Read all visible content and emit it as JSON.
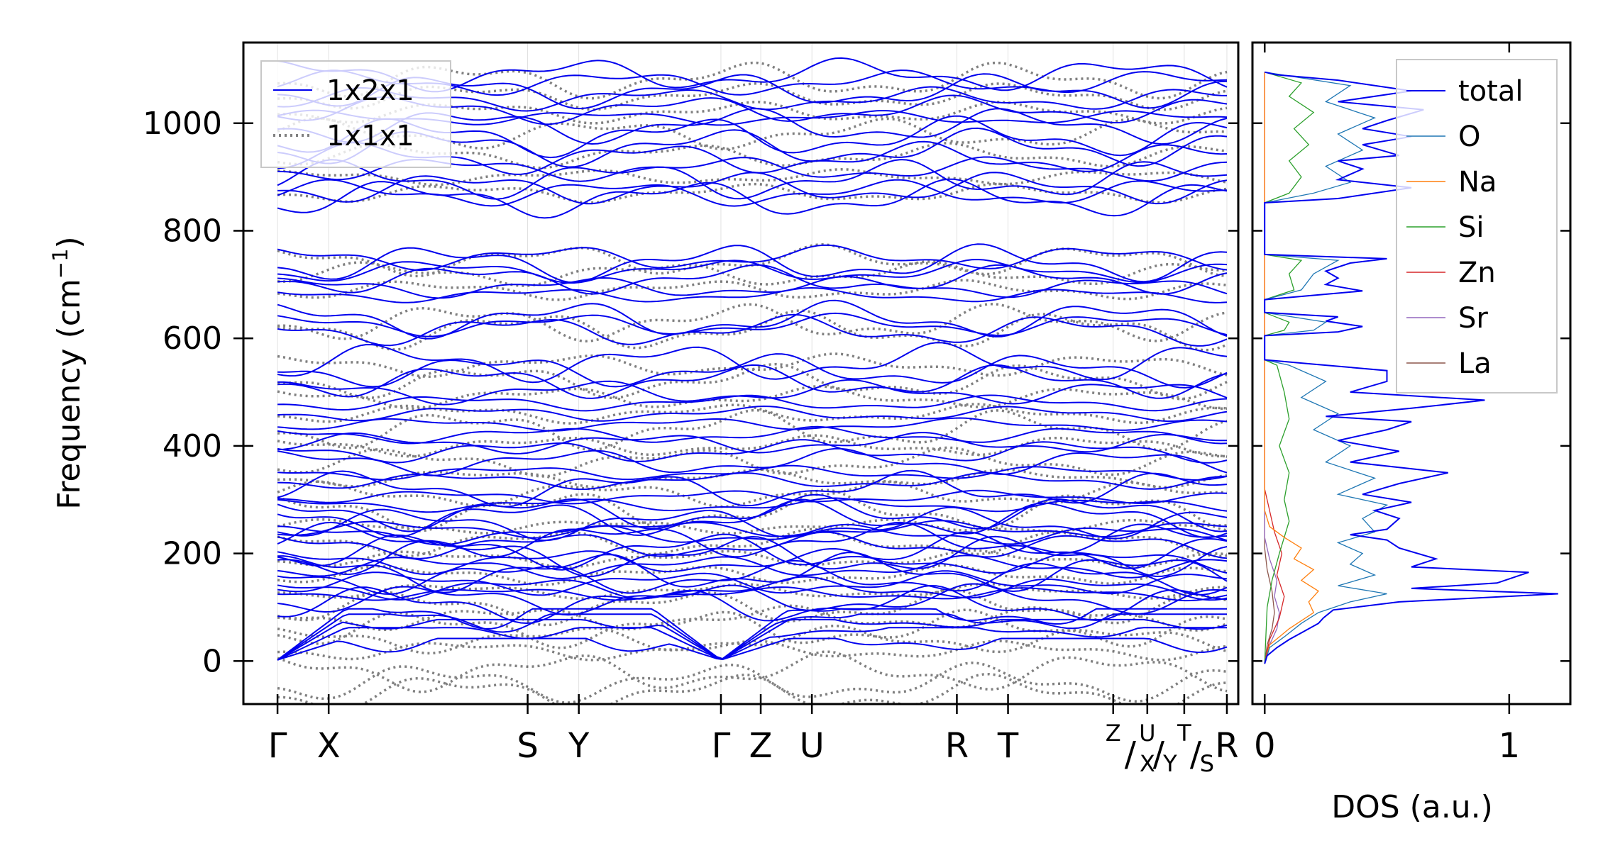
{
  "chart_data": [
    {
      "type": "line",
      "name": "phonon-band-structure",
      "ylabel": "Frequency (cm",
      "ylabel_sup": "−1",
      "ylabel_close": ")",
      "ylim": [
        -80,
        1150
      ],
      "yticks": [
        0,
        200,
        400,
        600,
        800,
        1000
      ],
      "xlim": [
        0,
        17.5
      ],
      "kpoints": [
        {
          "label": "Γ",
          "pos": 0.6
        },
        {
          "label": "X",
          "pos": 1.5
        },
        {
          "label": "S",
          "pos": 5.0
        },
        {
          "label": "Y",
          "pos": 5.9
        },
        {
          "label": "Γ",
          "pos": 8.4
        },
        {
          "label": "Z",
          "pos": 9.1
        },
        {
          "label": "U",
          "pos": 10.0
        },
        {
          "label": "R",
          "pos": 12.55
        },
        {
          "label": "T",
          "pos": 13.45
        },
        {
          "label": "Z",
          "pos": 15.3,
          "sup": true
        },
        {
          "label": "U",
          "pos": 15.9,
          "sup": true
        },
        {
          "label": "X",
          "pos": 15.9,
          "sub": true
        },
        {
          "label": "T",
          "pos": 16.55,
          "sup": true
        },
        {
          "label": "Y",
          "pos": 16.3,
          "sub": true
        },
        {
          "label": "S",
          "pos": 16.95,
          "sub": true
        },
        {
          "label": "R",
          "pos": 17.3
        }
      ],
      "path_separators": [
        "/",
        "/",
        "/"
      ],
      "legend": {
        "position": "top-left",
        "entries": [
          "1x2x1",
          "1x1x1"
        ]
      },
      "series": [
        {
          "name": "1x2x1",
          "color": "#0000ee",
          "style": "solid",
          "band_centers": [
            40,
            60,
            75,
            85,
            95,
            105,
            115,
            125,
            135,
            145,
            155,
            165,
            175,
            185,
            195,
            205,
            215,
            225,
            235,
            245,
            255,
            265,
            275,
            290,
            305,
            320,
            335,
            350,
            370,
            390,
            405,
            420,
            440,
            460,
            480,
            500,
            520,
            540,
            555,
            615,
            625,
            635,
            680,
            695,
            710,
            725,
            740,
            750,
            860,
            870,
            880,
            895,
            915,
            935,
            955,
            975,
            995,
            1010,
            1025,
            1045,
            1060,
            1075,
            1090
          ]
        },
        {
          "name": "1x1x1",
          "color": "#808080",
          "style": "dotted",
          "band_centers": [
            -60,
            -40,
            -20,
            20,
            40,
            60,
            80,
            100,
            130,
            160,
            190,
            220,
            250,
            280,
            310,
            340,
            370,
            400,
            430,
            460,
            490,
            520,
            550,
            615,
            630,
            690,
            720,
            745,
            870,
            900,
            940,
            980,
            1020,
            1050,
            1080
          ]
        }
      ]
    },
    {
      "type": "line",
      "name": "density-of-states",
      "xlabel": "DOS (a.u.)",
      "xlim": [
        -0.05,
        1.25
      ],
      "xticks": [
        0,
        1
      ],
      "ylim": [
        -80,
        1150
      ],
      "legend": {
        "position": "top-right",
        "entries": [
          "total",
          "O",
          "Na",
          "Si",
          "Zn",
          "Sr",
          "La"
        ]
      },
      "series": [
        {
          "name": "total",
          "color": "#0000ee",
          "points": [
            [
              0,
              -5
            ],
            [
              0.01,
              10
            ],
            [
              0.05,
              25
            ],
            [
              0.1,
              40
            ],
            [
              0.16,
              55
            ],
            [
              0.22,
              70
            ],
            [
              0.24,
              80
            ],
            [
              0.28,
              95
            ],
            [
              0.55,
              110
            ],
            [
              1.2,
              125
            ],
            [
              0.6,
              135
            ],
            [
              0.95,
              145
            ],
            [
              1.08,
              165
            ],
            [
              0.6,
              175
            ],
            [
              0.7,
              190
            ],
            [
              0.55,
              210
            ],
            [
              0.5,
              225
            ],
            [
              0.35,
              235
            ],
            [
              0.5,
              245
            ],
            [
              0.55,
              265
            ],
            [
              0.45,
              280
            ],
            [
              0.6,
              295
            ],
            [
              0.4,
              310
            ],
            [
              0.55,
              330
            ],
            [
              0.75,
              350
            ],
            [
              0.35,
              370
            ],
            [
              0.55,
              390
            ],
            [
              0.3,
              410
            ],
            [
              0.5,
              430
            ],
            [
              0.6,
              445
            ],
            [
              0.25,
              455
            ],
            [
              0.6,
              470
            ],
            [
              0.9,
              485
            ],
            [
              0.35,
              500
            ],
            [
              0.5,
              520
            ],
            [
              0.5,
              540
            ],
            [
              0.2,
              552
            ],
            [
              0,
              560
            ],
            [
              0,
              605
            ],
            [
              0.3,
              612
            ],
            [
              0.4,
              622
            ],
            [
              0.25,
              632
            ],
            [
              0.3,
              640
            ],
            [
              0,
              648
            ],
            [
              0,
              672
            ],
            [
              0.2,
              680
            ],
            [
              0.4,
              688
            ],
            [
              0.25,
              700
            ],
            [
              0.3,
              712
            ],
            [
              0.25,
              725
            ],
            [
              0.35,
              740
            ],
            [
              0.5,
              748
            ],
            [
              0,
              756
            ],
            [
              0,
              852
            ],
            [
              0.3,
              860
            ],
            [
              0.6,
              880
            ],
            [
              0.3,
              895
            ],
            [
              0.4,
              915
            ],
            [
              0.3,
              930
            ],
            [
              0.55,
              940
            ],
            [
              0.4,
              960
            ],
            [
              0.6,
              975
            ],
            [
              0.4,
              990
            ],
            [
              0.5,
              1005
            ],
            [
              0.65,
              1025
            ],
            [
              0.3,
              1040
            ],
            [
              0.6,
              1060
            ],
            [
              0.3,
              1080
            ],
            [
              0.05,
              1090
            ],
            [
              0,
              1095
            ]
          ]
        },
        {
          "name": "O",
          "color": "#1f77b4",
          "points": [
            [
              0,
              -5
            ],
            [
              0.02,
              25
            ],
            [
              0.08,
              45
            ],
            [
              0.15,
              70
            ],
            [
              0.22,
              90
            ],
            [
              0.35,
              110
            ],
            [
              0.5,
              125
            ],
            [
              0.3,
              140
            ],
            [
              0.45,
              160
            ],
            [
              0.35,
              180
            ],
            [
              0.4,
              200
            ],
            [
              0.3,
              220
            ],
            [
              0.45,
              240
            ],
            [
              0.4,
              265
            ],
            [
              0.5,
              290
            ],
            [
              0.3,
              310
            ],
            [
              0.45,
              340
            ],
            [
              0.25,
              370
            ],
            [
              0.35,
              400
            ],
            [
              0.2,
              430
            ],
            [
              0.3,
              460
            ],
            [
              0.15,
              490
            ],
            [
              0.25,
              520
            ],
            [
              0.1,
              550
            ],
            [
              0,
              560
            ],
            [
              0,
              605
            ],
            [
              0.2,
              615
            ],
            [
              0.25,
              630
            ],
            [
              0,
              648
            ],
            [
              0,
              672
            ],
            [
              0.15,
              690
            ],
            [
              0.2,
              720
            ],
            [
              0.3,
              745
            ],
            [
              0,
              756
            ],
            [
              0,
              852
            ],
            [
              0.2,
              870
            ],
            [
              0.35,
              890
            ],
            [
              0.25,
              920
            ],
            [
              0.4,
              950
            ],
            [
              0.3,
              980
            ],
            [
              0.45,
              1010
            ],
            [
              0.25,
              1040
            ],
            [
              0.35,
              1070
            ],
            [
              0,
              1095
            ]
          ]
        },
        {
          "name": "Na",
          "color": "#ff7f0e",
          "points": [
            [
              0,
              -5
            ],
            [
              0.02,
              30
            ],
            [
              0.1,
              60
            ],
            [
              0.2,
              90
            ],
            [
              0.18,
              110
            ],
            [
              0.22,
              130
            ],
            [
              0.15,
              150
            ],
            [
              0.2,
              170
            ],
            [
              0.12,
              190
            ],
            [
              0.15,
              210
            ],
            [
              0.08,
              230
            ],
            [
              0.02,
              250
            ],
            [
              0,
              280
            ],
            [
              0,
              1095
            ]
          ]
        },
        {
          "name": "Si",
          "color": "#2ca02c",
          "points": [
            [
              0,
              -5
            ],
            [
              0.01,
              100
            ],
            [
              0.03,
              150
            ],
            [
              0.06,
              200
            ],
            [
              0.1,
              260
            ],
            [
              0.08,
              300
            ],
            [
              0.1,
              350
            ],
            [
              0.06,
              400
            ],
            [
              0.1,
              450
            ],
            [
              0.08,
              500
            ],
            [
              0.05,
              550
            ],
            [
              0,
              560
            ],
            [
              0,
              605
            ],
            [
              0.08,
              615
            ],
            [
              0.1,
              630
            ],
            [
              0,
              648
            ],
            [
              0,
              672
            ],
            [
              0.12,
              690
            ],
            [
              0.1,
              720
            ],
            [
              0.15,
              745
            ],
            [
              0,
              756
            ],
            [
              0,
              852
            ],
            [
              0.1,
              870
            ],
            [
              0.15,
              900
            ],
            [
              0.1,
              930
            ],
            [
              0.18,
              960
            ],
            [
              0.12,
              990
            ],
            [
              0.2,
              1020
            ],
            [
              0.1,
              1050
            ],
            [
              0.15,
              1075
            ],
            [
              0,
              1095
            ]
          ]
        },
        {
          "name": "Zn",
          "color": "#d62728",
          "points": [
            [
              0,
              -5
            ],
            [
              0.02,
              40
            ],
            [
              0.06,
              80
            ],
            [
              0.08,
              120
            ],
            [
              0.05,
              160
            ],
            [
              0.07,
              200
            ],
            [
              0.04,
              240
            ],
            [
              0.02,
              280
            ],
            [
              0,
              320
            ],
            [
              0,
              1095
            ]
          ]
        },
        {
          "name": "Sr",
          "color": "#9467bd",
          "points": [
            [
              0,
              -5
            ],
            [
              0.02,
              30
            ],
            [
              0.05,
              60
            ],
            [
              0.06,
              90
            ],
            [
              0.04,
              120
            ],
            [
              0.05,
              150
            ],
            [
              0.02,
              190
            ],
            [
              0,
              230
            ],
            [
              0,
              1095
            ]
          ]
        },
        {
          "name": "La",
          "color": "#8c564b",
          "points": [
            [
              0,
              -5
            ],
            [
              0.01,
              30
            ],
            [
              0.03,
              60
            ],
            [
              0.04,
              90
            ],
            [
              0.03,
              130
            ],
            [
              0.01,
              170
            ],
            [
              0,
              210
            ],
            [
              0,
              1095
            ]
          ]
        }
      ]
    }
  ]
}
